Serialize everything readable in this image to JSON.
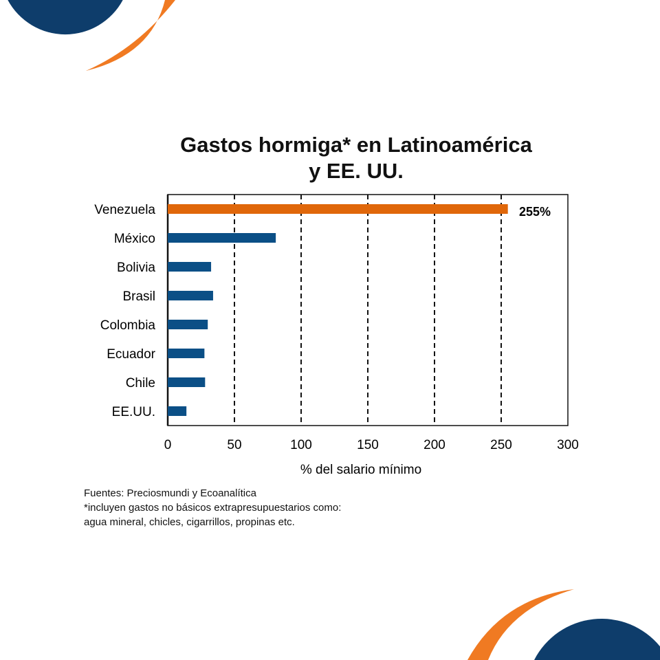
{
  "colors": {
    "navy": "#0e3d6b",
    "orange": "#f07a22",
    "bar": "#0b4f86",
    "highlight": "#e0670a"
  },
  "chart_data": {
    "type": "bar",
    "orientation": "horizontal",
    "title_line1": "Gastos hormiga* en Latinoamérica",
    "title_line2": "y EE. UU.",
    "categories": [
      "Venezuela",
      "México",
      "Bolivia",
      "Brasil",
      "Colombia",
      "Ecuador",
      "Chile",
      "EE.UU."
    ],
    "values": [
      255,
      81,
      32.5,
      34,
      30,
      27.5,
      28,
      14
    ],
    "highlight_index": 0,
    "data_label": "255%",
    "xlabel": "% del salario mínimo",
    "ylabel": "",
    "xlim": [
      0,
      300
    ],
    "xticks": [
      "0",
      "50",
      "100",
      "150",
      "200",
      "250",
      "300"
    ],
    "grid": "vertical dashed"
  },
  "notes": [
    "Fuentes: Preciosmundi y Ecoanalítica",
    "*incluyen gastos no básicos extrapresupuestarios como:",
    "agua mineral, chicles, cigarrillos, propinas etc."
  ]
}
